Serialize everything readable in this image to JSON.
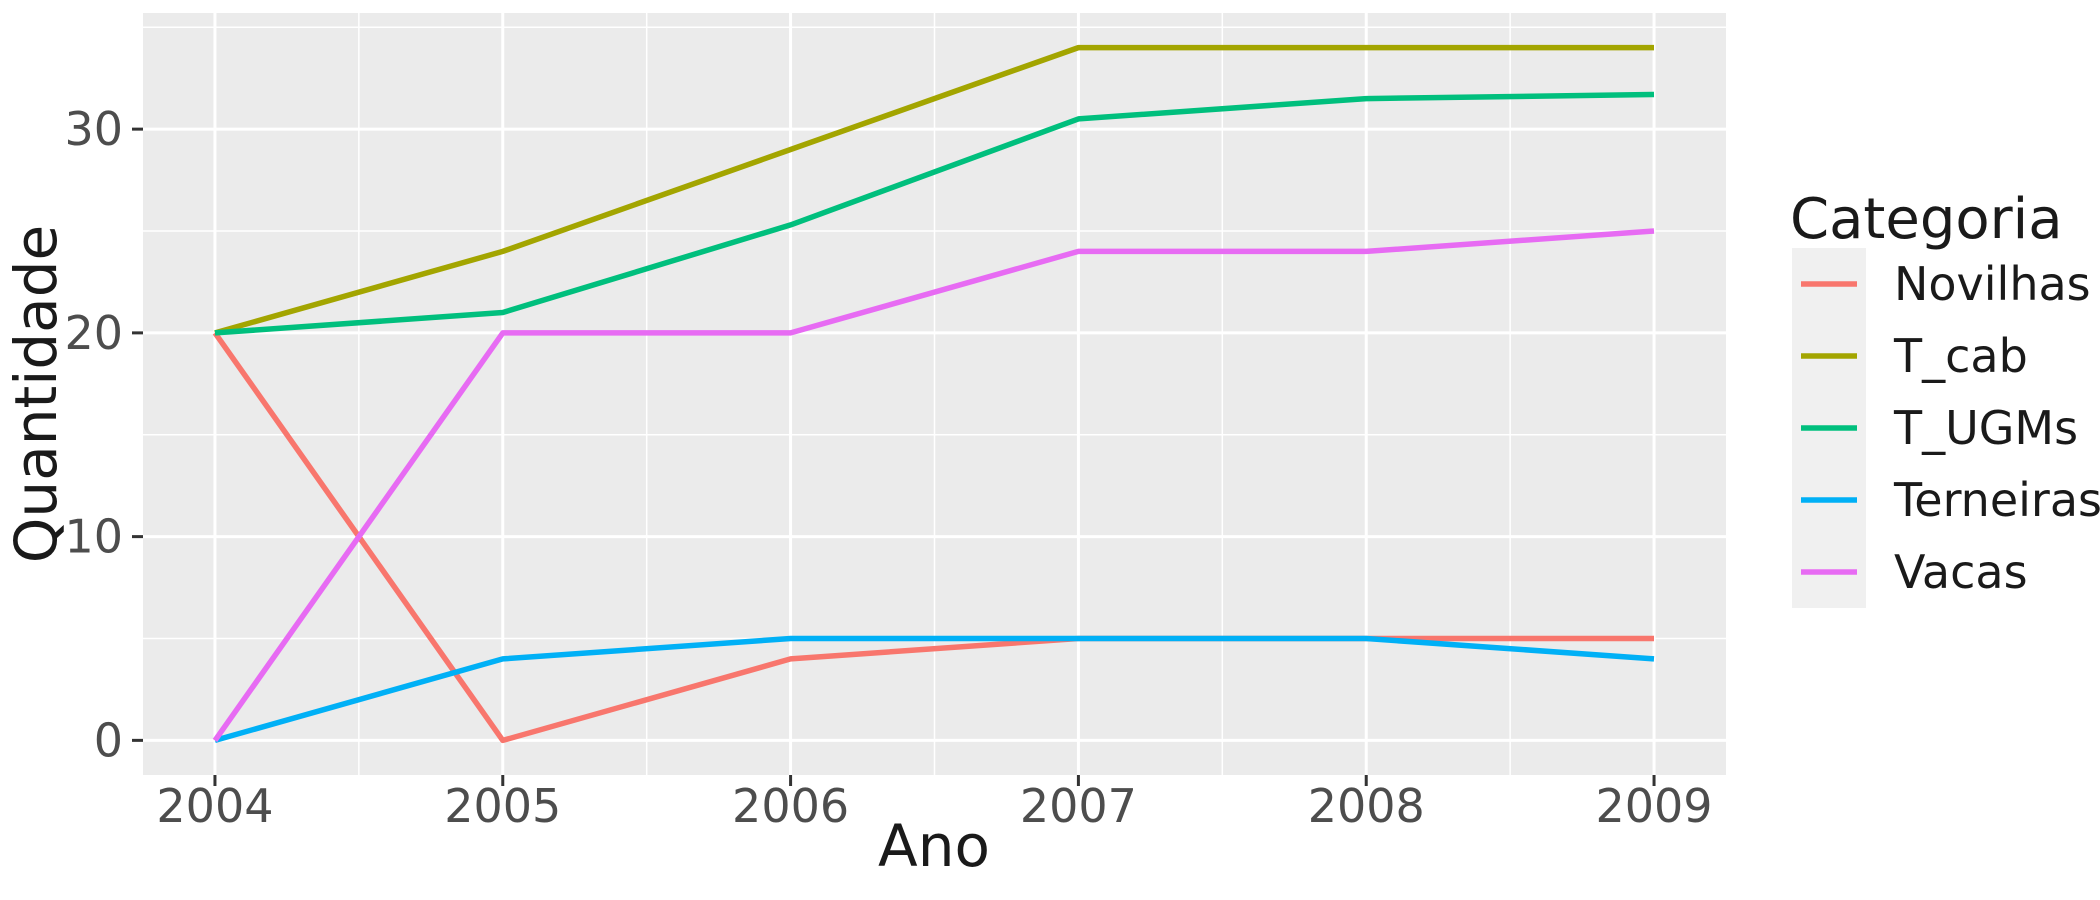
{
  "chart_data": {
    "type": "line",
    "title": "",
    "xlabel": "Ano",
    "ylabel": "Quantidade",
    "x": [
      2004,
      2005,
      2006,
      2007,
      2008,
      2009
    ],
    "x_tick_labels": [
      "2004",
      "2005",
      "2006",
      "2007",
      "2008",
      "2009"
    ],
    "y_ticks": [
      0,
      10,
      20,
      30
    ],
    "y_tick_labels": [
      "0",
      "10",
      "20",
      "30"
    ],
    "y_minor_ticks": [
      5,
      15,
      25,
      35
    ],
    "x_minor_ticks": [
      2004.5,
      2005.5,
      2006.5,
      2007.5,
      2008.5
    ],
    "xlim": [
      2003.75,
      2009.25
    ],
    "ylim": [
      -1.7,
      35.7
    ],
    "grid": "major+minor",
    "legend_position": "right",
    "legend_title": "Categoria",
    "series": [
      {
        "name": "Novilhas",
        "color": "#F8766D",
        "values": [
          20,
          0,
          4,
          5,
          5,
          5
        ]
      },
      {
        "name": "T_cab",
        "color": "#A3A500",
        "values": [
          20,
          24,
          29,
          34,
          34,
          34
        ]
      },
      {
        "name": "T_UGMs",
        "color": "#00BF7D",
        "values": [
          20,
          21,
          25.3,
          30.5,
          31.5,
          31.7
        ]
      },
      {
        "name": "Terneiras",
        "color": "#00B0F6",
        "values": [
          0,
          4,
          5,
          5,
          5,
          4
        ]
      },
      {
        "name": "Vacas",
        "color": "#E76BF3",
        "values": [
          0,
          20,
          20,
          24,
          24,
          25
        ]
      }
    ]
  },
  "style": {
    "background": "#FFFFFF",
    "panel_bg": "#EBEBEB",
    "grid_color": "#FFFFFF",
    "tick_color": "#333333",
    "tick_text_color": "#4D4D4D",
    "axis_title_color": "#1A1A1A",
    "legend_key_bg": "#F0F0F0",
    "legend_text_color": "#1A1A1A"
  }
}
